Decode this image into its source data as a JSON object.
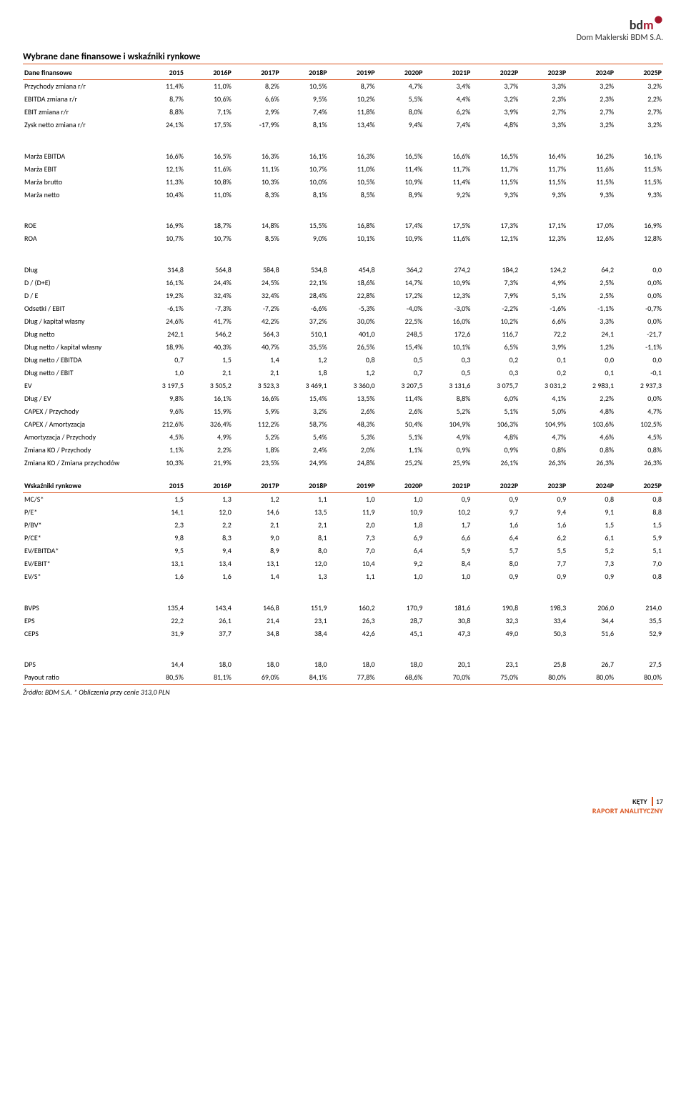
{
  "logo": {
    "brand_b": "bd",
    "brand_m": "m",
    "sub": "Dom Maklerski BDM S.A."
  },
  "title1": "Wybrane dane finansowe i wskaźniki rynkowe",
  "header_financial": "Dane finansowe",
  "header_market": "Wskaźniki rynkowe",
  "years": [
    "2015",
    "2016P",
    "2017P",
    "2018P",
    "2019P",
    "2020P",
    "2021P",
    "2022P",
    "2023P",
    "2024P",
    "2025P"
  ],
  "financial_rows": [
    {
      "label": "Przychody zmiana r/r",
      "v": [
        "11,4%",
        "11,0%",
        "8,2%",
        "10,5%",
        "8,7%",
        "4,7%",
        "3,4%",
        "3,7%",
        "3,3%",
        "3,2%",
        "3,2%"
      ]
    },
    {
      "label": "EBITDA zmiana r/r",
      "v": [
        "8,7%",
        "10,6%",
        "6,6%",
        "9,5%",
        "10,2%",
        "5,5%",
        "4,4%",
        "3,2%",
        "2,3%",
        "2,3%",
        "2,2%"
      ]
    },
    {
      "label": "EBIT zmiana r/r",
      "v": [
        "8,8%",
        "7,1%",
        "2,9%",
        "7,4%",
        "11,8%",
        "8,0%",
        "6,2%",
        "3,9%",
        "2,7%",
        "2,7%",
        "2,7%"
      ]
    },
    {
      "label": "Zysk netto zmiana r/r",
      "v": [
        "24,1%",
        "17,5%",
        "-17,9%",
        "8,1%",
        "13,4%",
        "9,4%",
        "7,4%",
        "4,8%",
        "3,3%",
        "3,2%",
        "3,2%"
      ],
      "gap_after": true
    },
    {
      "label": "Marża EBITDA",
      "v": [
        "16,6%",
        "16,5%",
        "16,3%",
        "16,1%",
        "16,3%",
        "16,5%",
        "16,6%",
        "16,5%",
        "16,4%",
        "16,2%",
        "16,1%"
      ]
    },
    {
      "label": "Marża EBIT",
      "v": [
        "12,1%",
        "11,6%",
        "11,1%",
        "10,7%",
        "11,0%",
        "11,4%",
        "11,7%",
        "11,7%",
        "11,7%",
        "11,6%",
        "11,5%"
      ]
    },
    {
      "label": "Marża brutto",
      "v": [
        "11,3%",
        "10,8%",
        "10,3%",
        "10,0%",
        "10,5%",
        "10,9%",
        "11,4%",
        "11,5%",
        "11,5%",
        "11,5%",
        "11,5%"
      ]
    },
    {
      "label": "Marża netto",
      "v": [
        "10,4%",
        "11,0%",
        "8,3%",
        "8,1%",
        "8,5%",
        "8,9%",
        "9,2%",
        "9,3%",
        "9,3%",
        "9,3%",
        "9,3%"
      ],
      "gap_after": true
    },
    {
      "label": "ROE",
      "v": [
        "16,9%",
        "18,7%",
        "14,8%",
        "15,5%",
        "16,8%",
        "17,4%",
        "17,5%",
        "17,3%",
        "17,1%",
        "17,0%",
        "16,9%"
      ]
    },
    {
      "label": "ROA",
      "v": [
        "10,7%",
        "10,7%",
        "8,5%",
        "9,0%",
        "10,1%",
        "10,9%",
        "11,6%",
        "12,1%",
        "12,3%",
        "12,6%",
        "12,8%"
      ],
      "gap_after": true
    },
    {
      "label": "Dług",
      "v": [
        "314,8",
        "564,8",
        "584,8",
        "534,8",
        "454,8",
        "364,2",
        "274,2",
        "184,2",
        "124,2",
        "64,2",
        "0,0"
      ]
    },
    {
      "label": "D / (D+E)",
      "v": [
        "16,1%",
        "24,4%",
        "24,5%",
        "22,1%",
        "18,6%",
        "14,7%",
        "10,9%",
        "7,3%",
        "4,9%",
        "2,5%",
        "0,0%"
      ]
    },
    {
      "label": "D / E",
      "v": [
        "19,2%",
        "32,4%",
        "32,4%",
        "28,4%",
        "22,8%",
        "17,2%",
        "12,3%",
        "7,9%",
        "5,1%",
        "2,5%",
        "0,0%"
      ]
    },
    {
      "label": "Odsetki / EBIT",
      "v": [
        "-6,1%",
        "-7,3%",
        "-7,2%",
        "-6,6%",
        "-5,3%",
        "-4,0%",
        "-3,0%",
        "-2,2%",
        "-1,6%",
        "-1,1%",
        "-0,7%"
      ]
    },
    {
      "label": "Dług / kapitał własny",
      "v": [
        "24,6%",
        "41,7%",
        "42,2%",
        "37,2%",
        "30,0%",
        "22,5%",
        "16,0%",
        "10,2%",
        "6,6%",
        "3,3%",
        "0,0%"
      ]
    },
    {
      "label": "Dług netto",
      "v": [
        "242,1",
        "546,2",
        "564,3",
        "510,1",
        "401,0",
        "248,5",
        "172,6",
        "116,7",
        "72,2",
        "24,1",
        "-21,7"
      ]
    },
    {
      "label": "Dług netto / kapitał własny",
      "v": [
        "18,9%",
        "40,3%",
        "40,7%",
        "35,5%",
        "26,5%",
        "15,4%",
        "10,1%",
        "6,5%",
        "3,9%",
        "1,2%",
        "-1,1%"
      ]
    },
    {
      "label": "Dług netto / EBITDA",
      "v": [
        "0,7",
        "1,5",
        "1,4",
        "1,2",
        "0,8",
        "0,5",
        "0,3",
        "0,2",
        "0,1",
        "0,0",
        "0,0"
      ]
    },
    {
      "label": "Dług netto / EBIT",
      "v": [
        "1,0",
        "2,1",
        "2,1",
        "1,8",
        "1,2",
        "0,7",
        "0,5",
        "0,3",
        "0,2",
        "0,1",
        "-0,1"
      ]
    },
    {
      "label": "EV",
      "v": [
        "3 197,5",
        "3 505,2",
        "3 523,3",
        "3 469,1",
        "3 360,0",
        "3 207,5",
        "3 131,6",
        "3 075,7",
        "3 031,2",
        "2 983,1",
        "2 937,3"
      ]
    },
    {
      "label": "Dług / EV",
      "v": [
        "9,8%",
        "16,1%",
        "16,6%",
        "15,4%",
        "13,5%",
        "11,4%",
        "8,8%",
        "6,0%",
        "4,1%",
        "2,2%",
        "0,0%"
      ]
    },
    {
      "label": "CAPEX / Przychody",
      "v": [
        "9,6%",
        "15,9%",
        "5,9%",
        "3,2%",
        "2,6%",
        "2,6%",
        "5,2%",
        "5,1%",
        "5,0%",
        "4,8%",
        "4,7%"
      ]
    },
    {
      "label": "CAPEX / Amortyzacja",
      "v": [
        "212,6%",
        "326,4%",
        "112,2%",
        "58,7%",
        "48,3%",
        "50,4%",
        "104,9%",
        "106,3%",
        "104,9%",
        "103,6%",
        "102,5%"
      ]
    },
    {
      "label": "Amortyzacja / Przychody",
      "v": [
        "4,5%",
        "4,9%",
        "5,2%",
        "5,4%",
        "5,3%",
        "5,1%",
        "4,9%",
        "4,8%",
        "4,7%",
        "4,6%",
        "4,5%"
      ]
    },
    {
      "label": "Zmiana KO / Przychody",
      "v": [
        "1,1%",
        "2,2%",
        "1,8%",
        "2,4%",
        "2,0%",
        "1,1%",
        "0,9%",
        "0,9%",
        "0,8%",
        "0,8%",
        "0,8%"
      ]
    },
    {
      "label": "Zmiana KO / Zmiana przychodów",
      "v": [
        "10,3%",
        "21,9%",
        "23,5%",
        "24,9%",
        "24,8%",
        "25,2%",
        "25,9%",
        "26,1%",
        "26,3%",
        "26,3%",
        "26,3%"
      ]
    }
  ],
  "market_rows": [
    {
      "label": "MC/S*",
      "v": [
        "1,5",
        "1,3",
        "1,2",
        "1,1",
        "1,0",
        "1,0",
        "0,9",
        "0,9",
        "0,9",
        "0,8",
        "0,8"
      ]
    },
    {
      "label": "P/E*",
      "v": [
        "14,1",
        "12,0",
        "14,6",
        "13,5",
        "11,9",
        "10,9",
        "10,2",
        "9,7",
        "9,4",
        "9,1",
        "8,8"
      ]
    },
    {
      "label": "P/BV*",
      "v": [
        "2,3",
        "2,2",
        "2,1",
        "2,1",
        "2,0",
        "1,8",
        "1,7",
        "1,6",
        "1,6",
        "1,5",
        "1,5"
      ]
    },
    {
      "label": "P/CE*",
      "v": [
        "9,8",
        "8,3",
        "9,0",
        "8,1",
        "7,3",
        "6,9",
        "6,6",
        "6,4",
        "6,2",
        "6,1",
        "5,9"
      ]
    },
    {
      "label": "EV/EBITDA*",
      "v": [
        "9,5",
        "9,4",
        "8,9",
        "8,0",
        "7,0",
        "6,4",
        "5,9",
        "5,7",
        "5,5",
        "5,2",
        "5,1"
      ]
    },
    {
      "label": "EV/EBIT*",
      "v": [
        "13,1",
        "13,4",
        "13,1",
        "12,0",
        "10,4",
        "9,2",
        "8,4",
        "8,0",
        "7,7",
        "7,3",
        "7,0"
      ]
    },
    {
      "label": "EV/S*",
      "v": [
        "1,6",
        "1,6",
        "1,4",
        "1,3",
        "1,1",
        "1,0",
        "1,0",
        "0,9",
        "0,9",
        "0,9",
        "0,8"
      ],
      "gap_after": true
    },
    {
      "label": "BVPS",
      "v": [
        "135,4",
        "143,4",
        "146,8",
        "151,9",
        "160,2",
        "170,9",
        "181,6",
        "190,8",
        "198,3",
        "206,0",
        "214,0"
      ]
    },
    {
      "label": "EPS",
      "v": [
        "22,2",
        "26,1",
        "21,4",
        "23,1",
        "26,3",
        "28,7",
        "30,8",
        "32,3",
        "33,4",
        "34,4",
        "35,5"
      ]
    },
    {
      "label": "CEPS",
      "v": [
        "31,9",
        "37,7",
        "34,8",
        "38,4",
        "42,6",
        "45,1",
        "47,3",
        "49,0",
        "50,3",
        "51,6",
        "52,9"
      ],
      "gap_after": true
    },
    {
      "label": "DPS",
      "v": [
        "14,4",
        "18,0",
        "18,0",
        "18,0",
        "18,0",
        "18,0",
        "20,1",
        "23,1",
        "25,8",
        "26,7",
        "27,5"
      ]
    },
    {
      "label": "Payout ratio",
      "v": [
        "80,5%",
        "81,1%",
        "69,0%",
        "84,1%",
        "77,8%",
        "68,6%",
        "70,0%",
        "75,0%",
        "80,0%",
        "80,0%",
        "80,0%"
      ]
    }
  ],
  "source_note": "Źródło: BDM S.A. * Obliczenia przy cenie 313,0 PLN",
  "footer": {
    "kety": "KĘTY",
    "rap": "RAPORT ANALITYCZNY",
    "page": "17"
  },
  "colors": {
    "accent": "#d9531e",
    "brand": "#a6192e"
  }
}
